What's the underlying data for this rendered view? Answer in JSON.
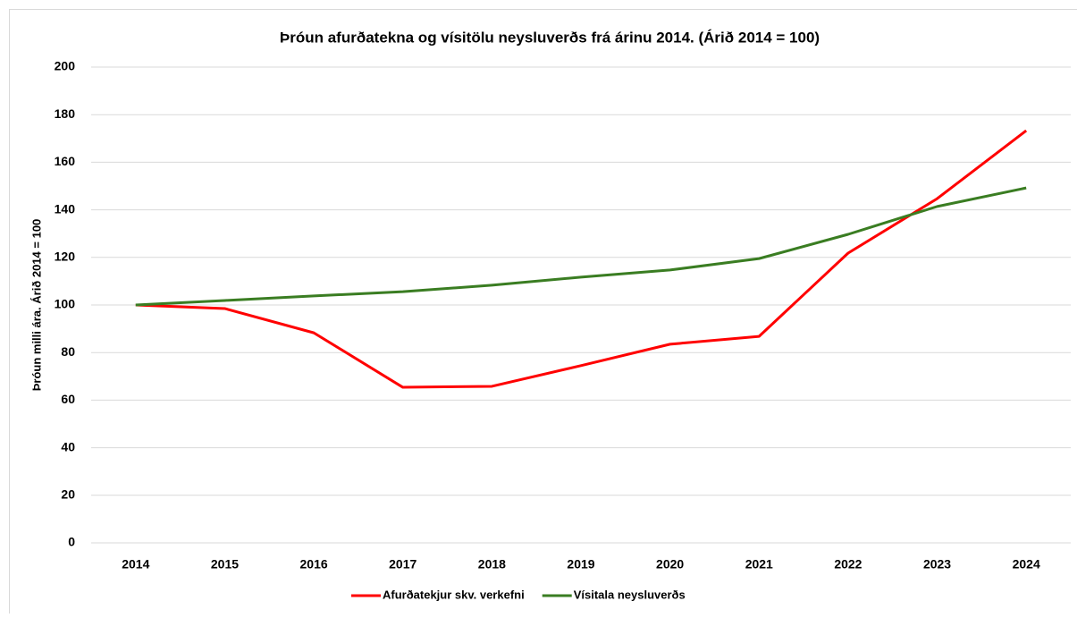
{
  "chart_data": {
    "type": "line",
    "title": "Þróun afurðatekna og vísitölu neysluverðs frá árinu 2014. (Árið 2014 = 100)",
    "ylabel": "Þróun milli ára. Árið 2014 = 100",
    "categories": [
      "2014",
      "2015",
      "2016",
      "2017",
      "2018",
      "2019",
      "2020",
      "2021",
      "2022",
      "2023",
      "2024"
    ],
    "series": [
      {
        "name": "Afurðatekjur skv. verkefni",
        "color": "#ff0000",
        "values": [
          100,
          98.5,
          88.3,
          65.4,
          65.8,
          74.5,
          83.5,
          86.8,
          121.8,
          144.7,
          173.3
        ]
      },
      {
        "name": "Vísitala neysluverðs",
        "color": "#3a7d22",
        "values": [
          100,
          101.9,
          103.8,
          105.6,
          108.3,
          111.7,
          114.7,
          119.5,
          129.7,
          141.4,
          149.2
        ]
      }
    ],
    "ylim": [
      0,
      200
    ],
    "yticks": [
      0,
      20,
      40,
      60,
      80,
      100,
      120,
      140,
      160,
      180,
      200
    ],
    "grid": true,
    "legend": "bottom"
  }
}
